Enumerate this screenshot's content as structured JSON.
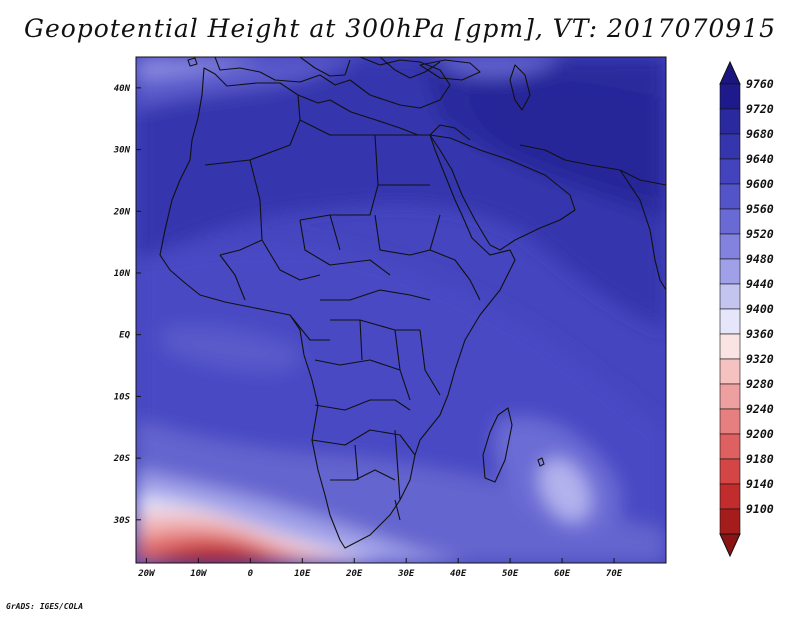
{
  "title": "Geopotential Height at 300hPa [gpm], VT: 2017070915",
  "credit": "GrADS: IGES/COLA",
  "map": {
    "lon_range": [
      -22,
      80
    ],
    "lat_range": [
      -37,
      45
    ],
    "lon_ticks": [
      {
        "value": -20,
        "label": "20W"
      },
      {
        "value": -10,
        "label": "10W"
      },
      {
        "value": 0,
        "label": "0"
      },
      {
        "value": 10,
        "label": "10E"
      },
      {
        "value": 20,
        "label": "20E"
      },
      {
        "value": 30,
        "label": "30E"
      },
      {
        "value": 40,
        "label": "40E"
      },
      {
        "value": 50,
        "label": "50E"
      },
      {
        "value": 60,
        "label": "60E"
      },
      {
        "value": 70,
        "label": "70E"
      }
    ],
    "lat_ticks": [
      {
        "value": 40,
        "label": "40N"
      },
      {
        "value": 30,
        "label": "30N"
      },
      {
        "value": 20,
        "label": "20N"
      },
      {
        "value": 10,
        "label": "10N"
      },
      {
        "value": 0,
        "label": "EQ"
      },
      {
        "value": -10,
        "label": "10S"
      },
      {
        "value": -20,
        "label": "20S"
      },
      {
        "value": -30,
        "label": "30S"
      }
    ]
  },
  "colorbar": {
    "levels": [
      {
        "label": "9760",
        "color": "#1e1a8c"
      },
      {
        "label": "9720",
        "color": "#2a2a9e"
      },
      {
        "label": "9680",
        "color": "#3535ae"
      },
      {
        "label": "9640",
        "color": "#4343bd"
      },
      {
        "label": "9600",
        "color": "#5454c9"
      },
      {
        "label": "9560",
        "color": "#6a6ad4"
      },
      {
        "label": "9520",
        "color": "#8383df"
      },
      {
        "label": "9480",
        "color": "#a0a0e8"
      },
      {
        "label": "9440",
        "color": "#c4c4f1"
      },
      {
        "label": "9400",
        "color": "#e6e6fa"
      },
      {
        "label": "9360",
        "color": "#fae3e3"
      },
      {
        "label": "9320",
        "color": "#f5c1c1"
      },
      {
        "label": "9280",
        "color": "#ee9f9f"
      },
      {
        "label": "9240",
        "color": "#e67f7f"
      },
      {
        "label": "9200",
        "color": "#de6060"
      },
      {
        "label": "9180",
        "color": "#d44545"
      },
      {
        "label": "9140",
        "color": "#c22c2c"
      },
      {
        "label": "9100",
        "color": "#a51c1c"
      }
    ],
    "top_color": "#1a1580",
    "bottom_color": "#8a1313"
  }
}
